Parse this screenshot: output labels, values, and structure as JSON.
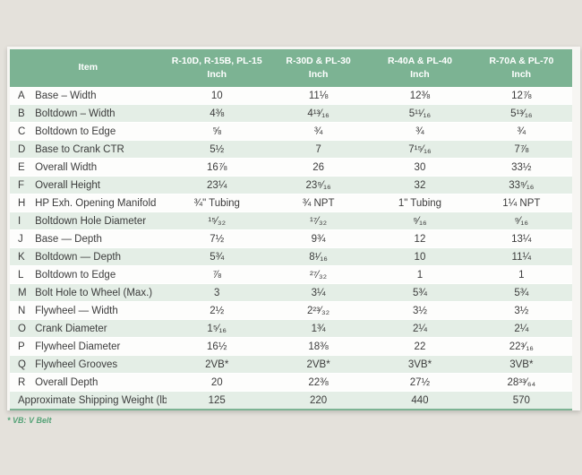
{
  "colors": {
    "page_background": "#e4e1db",
    "header_green": "#7cb393",
    "stripe_green": "#e4eee6",
    "stripe_white": "#fdfdfc",
    "footnote_green": "#55a277",
    "text": "#3c3c3c"
  },
  "table": {
    "header": {
      "item_label": "Item",
      "columns": [
        {
          "model": "R-10D, R-15B, PL-15",
          "unit": "Inch"
        },
        {
          "model": "R-30D & PL-30",
          "unit": "Inch"
        },
        {
          "model": "R-40A & PL-40",
          "unit": "Inch"
        },
        {
          "model": "R-70A & PL-70",
          "unit": "Inch"
        }
      ]
    },
    "rows": [
      {
        "key": "A",
        "item": "Base – Width",
        "values": [
          "10",
          "11⅛",
          "12⅜",
          "12⅞"
        ]
      },
      {
        "key": "B",
        "item": "Boltdown – Width",
        "values": [
          "4⅜",
          "4¹³⁄₁₆",
          "5¹¹⁄₁₆",
          "5¹³⁄₁₆"
        ]
      },
      {
        "key": "C",
        "item": "Boltdown to Edge",
        "values": [
          "⅝",
          "¾",
          "¾",
          "¾"
        ]
      },
      {
        "key": "D",
        "item": "Base to Crank CTR",
        "values": [
          "5½",
          "7",
          "7¹⁵⁄₁₆",
          "7⅞"
        ]
      },
      {
        "key": "E",
        "item": "Overall Width",
        "values": [
          "16⅞",
          "26",
          "30",
          "33½"
        ]
      },
      {
        "key": "F",
        "item": "Overall Height",
        "values": [
          "23¼",
          "23⁹⁄₁₆",
          "32",
          "33⁹⁄₁₆"
        ]
      },
      {
        "key": "H",
        "item": "HP Exh. Opening Manifold",
        "values": [
          "¾\" Tubing",
          "¾ NPT",
          "1\" Tubing",
          "1¼ NPT"
        ]
      },
      {
        "key": "I",
        "item": "Boltdown Hole Diameter",
        "values": [
          "¹⁵⁄₃₂",
          "¹⁷⁄₃₂",
          "⁹⁄₁₆",
          "⁹⁄₁₆"
        ]
      },
      {
        "key": "J",
        "item": "Base — Depth",
        "values": [
          "7½",
          "9¾",
          "12",
          "13¼"
        ]
      },
      {
        "key": "K",
        "item": "Boltdown — Depth",
        "values": [
          "5¾",
          "8¹⁄₁₆",
          "10",
          "11¼"
        ]
      },
      {
        "key": "L",
        "item": "Boltdown to Edge",
        "values": [
          "⅞",
          "²⁷⁄₃₂",
          "1",
          "1"
        ]
      },
      {
        "key": "M",
        "item": "Bolt Hole to Wheel (Max.)",
        "values": [
          "3",
          "3¼",
          "5¾",
          "5¾"
        ]
      },
      {
        "key": "N",
        "item": "Flywheel — Width",
        "values": [
          "2½",
          "2²³⁄₃₂",
          "3½",
          "3½"
        ]
      },
      {
        "key": "O",
        "item": "Crank Diameter",
        "values": [
          "1⁵⁄₁₆",
          "1¾",
          "2¼",
          "2¼"
        ]
      },
      {
        "key": "P",
        "item": "Flywheel Diameter",
        "values": [
          "16½",
          "18⅜",
          "22",
          "22³⁄₁₆"
        ]
      },
      {
        "key": "Q",
        "item": "Flywheel Grooves",
        "values": [
          "2VB*",
          "2VB*",
          "3VB*",
          "3VB*"
        ]
      },
      {
        "key": "R",
        "item": "Overall Depth",
        "values": [
          "20",
          "22⅜",
          "27½",
          "28³³⁄₆₄"
        ]
      }
    ],
    "weight_row": {
      "item": "Approximate Shipping Weight (lbs.)",
      "values": [
        "125",
        "220",
        "440",
        "570"
      ]
    }
  },
  "footnote": "* VB: V Belt"
}
